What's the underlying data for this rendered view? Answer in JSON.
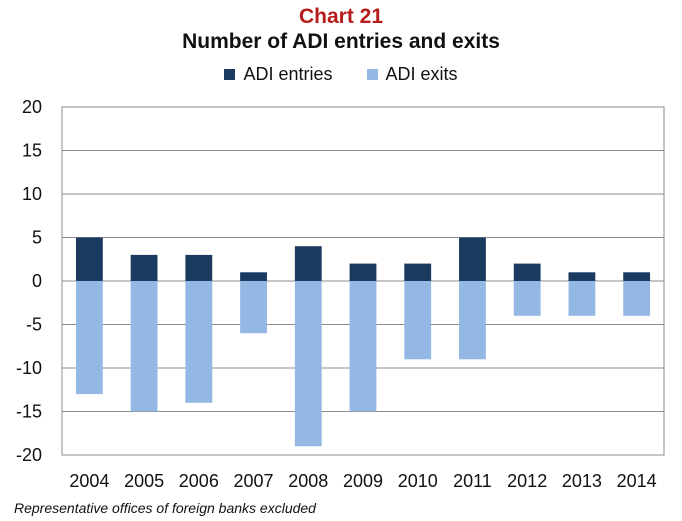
{
  "chart_data": {
    "type": "bar",
    "stacked": true,
    "title_prefix": "Chart 21",
    "title": "Number of ADI entries and exits",
    "categories": [
      "2004",
      "2005",
      "2006",
      "2007",
      "2008",
      "2009",
      "2010",
      "2011",
      "2012",
      "2013",
      "2014"
    ],
    "series": [
      {
        "name": "ADI entries",
        "color": "#1a3a5f",
        "values": [
          5,
          3,
          3,
          1,
          4,
          2,
          2,
          5,
          2,
          1,
          1
        ]
      },
      {
        "name": "ADI exits",
        "color": "#93b8e3",
        "values": [
          -13,
          -15,
          -14,
          -6,
          -19,
          -15,
          -9,
          -9,
          -4,
          -4,
          -4
        ]
      }
    ],
    "ylim": [
      -20,
      20
    ],
    "yticks": [
      20,
      15,
      10,
      5,
      0,
      -5,
      -10,
      -15,
      -20
    ],
    "grid": true,
    "legend_position": "top",
    "footnote": "Representative offices of foreign banks excluded"
  }
}
